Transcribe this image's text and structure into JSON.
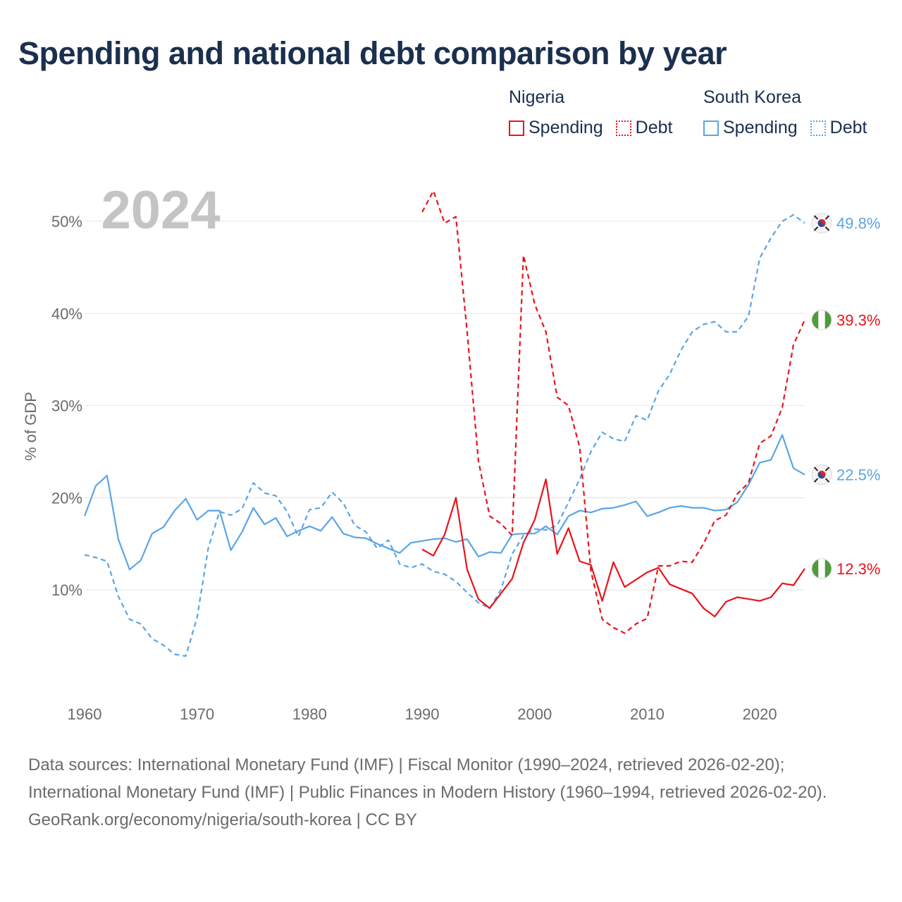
{
  "header": {
    "title": "Spending and national debt comparison by year"
  },
  "legend": {
    "nigeria": {
      "name": "Nigeria",
      "spending": "Spending",
      "debt": "Debt"
    },
    "south_korea": {
      "name": "South Korea",
      "spending": "Spending",
      "debt": "Debt"
    }
  },
  "footer": {
    "sources": "Data sources: International Monetary Fund (IMF) | Fiscal Monitor (1990–2024, retrieved 2026-02-20); International Monetary Fund (IMF) | Public Finances in Modern History (1960–1994, retrieved 2026-02-20).",
    "credit": "GeoRank.org/economy/nigeria/south-korea | CC BY"
  },
  "colors": {
    "nigeria": "#e8141b",
    "south_korea": "#5aa5e6",
    "title": "#1b2f4e",
    "year_watermark": "#c4c4c4",
    "grid": "#e6e6e6",
    "axis_text": "#6b6b6b"
  },
  "chart_data": {
    "type": "line",
    "title": "Spending and national debt comparison by year",
    "ylabel": "% of GDP",
    "xlabel": "",
    "current_year_label": "2024",
    "xlim": [
      1960,
      2024
    ],
    "ylim": [
      0,
      55
    ],
    "xticks": [
      1960,
      1970,
      1980,
      1990,
      2000,
      2010,
      2020
    ],
    "xtick_labels": [
      "1960",
      "1970",
      "1980",
      "1990",
      "2000",
      "2010",
      "2020"
    ],
    "yticks": [
      10,
      20,
      30,
      40,
      50
    ],
    "ytick_labels": [
      "10%",
      "20%",
      "30%",
      "40%",
      "50%"
    ],
    "series": [
      {
        "name": "South Korea Spending",
        "country": "South Korea",
        "metric": "Spending",
        "style": "solid",
        "color": "#5aa5e6",
        "end_label": "22.5%",
        "x": [
          1960,
          1961,
          1962,
          1963,
          1964,
          1965,
          1966,
          1967,
          1968,
          1969,
          1970,
          1971,
          1972,
          1973,
          1974,
          1975,
          1976,
          1977,
          1978,
          1979,
          1980,
          1981,
          1982,
          1983,
          1984,
          1985,
          1986,
          1987,
          1988,
          1989,
          1990,
          1991,
          1992,
          1993,
          1994,
          1995,
          1996,
          1997,
          1998,
          1999,
          2000,
          2001,
          2002,
          2003,
          2004,
          2005,
          2006,
          2007,
          2008,
          2009,
          2010,
          2011,
          2012,
          2013,
          2014,
          2015,
          2016,
          2017,
          2018,
          2019,
          2020,
          2021,
          2022,
          2023,
          2024
        ],
        "values": [
          18.0,
          21.3,
          22.4,
          15.5,
          12.2,
          13.2,
          16.1,
          16.8,
          18.6,
          19.9,
          17.6,
          18.6,
          18.6,
          14.3,
          16.3,
          18.9,
          17.1,
          17.8,
          15.8,
          16.4,
          16.9,
          16.4,
          17.9,
          16.1,
          15.7,
          15.6,
          15.0,
          14.5,
          14.0,
          15.1,
          15.3,
          15.5,
          15.6,
          15.2,
          15.5,
          13.6,
          14.1,
          14.0,
          16.0,
          16.1,
          16.1,
          16.9,
          16.0,
          18.0,
          18.6,
          18.4,
          18.8,
          18.9,
          19.2,
          19.6,
          18.0,
          18.4,
          18.9,
          19.1,
          18.9,
          18.9,
          18.6,
          18.7,
          19.5,
          21.4,
          23.8,
          24.1,
          26.8,
          23.2,
          22.5
        ]
      },
      {
        "name": "South Korea Debt",
        "country": "South Korea",
        "metric": "Debt",
        "style": "dashed",
        "color": "#5aa5e6",
        "end_label": "49.8%",
        "x": [
          1960,
          1961,
          1962,
          1963,
          1964,
          1965,
          1966,
          1967,
          1968,
          1969,
          1970,
          1971,
          1972,
          1973,
          1974,
          1975,
          1976,
          1977,
          1978,
          1979,
          1980,
          1981,
          1982,
          1983,
          1984,
          1985,
          1986,
          1987,
          1988,
          1989,
          1990,
          1991,
          1992,
          1993,
          1994,
          1995,
          1996,
          1997,
          1998,
          1999,
          2000,
          2001,
          2002,
          2003,
          2004,
          2005,
          2006,
          2007,
          2008,
          2009,
          2010,
          2011,
          2012,
          2013,
          2014,
          2015,
          2016,
          2017,
          2018,
          2019,
          2020,
          2021,
          2022,
          2023,
          2024
        ],
        "values": [
          13.8,
          13.5,
          13.1,
          9.3,
          6.8,
          6.3,
          4.7,
          4.0,
          3.0,
          2.8,
          7.0,
          14.6,
          18.5,
          18.1,
          18.8,
          21.6,
          20.5,
          20.2,
          18.5,
          15.8,
          18.7,
          18.9,
          20.6,
          19.4,
          17.0,
          16.3,
          14.5,
          15.4,
          12.8,
          12.4,
          12.8,
          12.0,
          11.7,
          10.9,
          9.7,
          8.6,
          8.0,
          10.0,
          13.9,
          15.9,
          16.6,
          16.5,
          17.0,
          19.5,
          22.0,
          25.0,
          27.1,
          26.4,
          26.1,
          28.9,
          28.4,
          31.6,
          33.4,
          36.0,
          38.0,
          38.8,
          39.1,
          38.0,
          38.0,
          39.7,
          46.0,
          48.2,
          50.0,
          50.7,
          49.8
        ]
      },
      {
        "name": "Nigeria Spending",
        "country": "Nigeria",
        "metric": "Spending",
        "style": "solid",
        "color": "#e8141b",
        "end_label": "12.3%",
        "x": [
          1990,
          1991,
          1992,
          1993,
          1994,
          1995,
          1996,
          1997,
          1998,
          1999,
          2000,
          2001,
          2002,
          2003,
          2004,
          2005,
          2006,
          2007,
          2008,
          2009,
          2010,
          2011,
          2012,
          2013,
          2014,
          2015,
          2016,
          2017,
          2018,
          2019,
          2020,
          2021,
          2022,
          2023,
          2024
        ],
        "values": [
          14.4,
          13.7,
          16.0,
          20.0,
          12.2,
          9.0,
          8.0,
          9.6,
          11.2,
          15.1,
          17.6,
          22.0,
          13.9,
          16.7,
          13.1,
          12.7,
          8.8,
          13.0,
          10.3,
          11.1,
          11.9,
          12.4,
          10.6,
          10.1,
          9.6,
          8.0,
          7.1,
          8.7,
          9.2,
          9.0,
          8.8,
          9.2,
          10.7,
          10.5,
          12.3
        ]
      },
      {
        "name": "Nigeria Debt",
        "country": "Nigeria",
        "metric": "Debt",
        "style": "dashed",
        "color": "#e8141b",
        "end_label": "39.3%",
        "x": [
          1990,
          1991,
          1992,
          1993,
          1994,
          1995,
          1996,
          1997,
          1998,
          1999,
          2000,
          2001,
          2002,
          2003,
          2004,
          2005,
          2006,
          2007,
          2008,
          2009,
          2010,
          2011,
          2012,
          2013,
          2014,
          2015,
          2016,
          2017,
          2018,
          2019,
          2020,
          2021,
          2022,
          2023,
          2024
        ],
        "values": [
          51.0,
          53.3,
          49.8,
          50.5,
          38.0,
          24.0,
          18.0,
          17.2,
          15.9,
          46.3,
          41.0,
          38.0,
          30.9,
          30.0,
          25.5,
          12.0,
          6.8,
          5.9,
          5.3,
          6.3,
          6.9,
          12.6,
          12.6,
          13.1,
          13.0,
          15.0,
          17.5,
          18.1,
          20.4,
          21.6,
          25.9,
          26.7,
          29.8,
          36.6,
          39.3
        ]
      }
    ]
  }
}
